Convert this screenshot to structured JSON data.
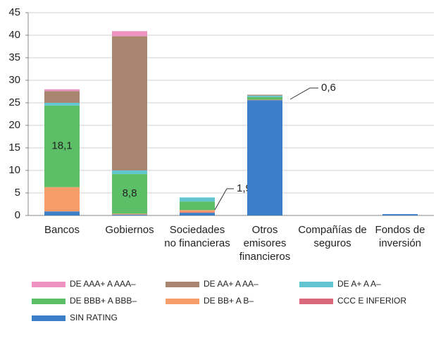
{
  "chart_data": {
    "type": "stacked-bar",
    "categories": [
      "Bancos",
      "Gobiernos",
      "Sociedades no financieras",
      "Otros emisores financieros",
      "Compañías de seguros",
      "Fondos de inversión"
    ],
    "series": [
      {
        "name": "SIN RATING",
        "color": "#3d7ec8",
        "values": [
          0.9,
          0.2,
          0.6,
          25.6,
          0,
          0.3
        ]
      },
      {
        "name": "CCC E INFERIOR",
        "color": "#d9687a",
        "values": [
          0,
          0,
          0.1,
          0,
          0,
          0
        ]
      },
      {
        "name": "DE BB+ A B–",
        "color": "#f59d6b",
        "values": [
          5.4,
          0.2,
          0.5,
          0.1,
          0,
          0
        ]
      },
      {
        "name": "DE BBB+ A BBB–",
        "color": "#5dbe68",
        "values": [
          18.1,
          8.8,
          1.9,
          0.6,
          0,
          0
        ],
        "value_labels": [
          "18,1",
          "8,8",
          "1,9",
          "0,6",
          null,
          null
        ]
      },
      {
        "name": "DE A+ A A–",
        "color": "#62c6d0",
        "values": [
          0.6,
          0.8,
          0.9,
          0.3,
          0,
          0
        ]
      },
      {
        "name": "DE AA+ A AA–",
        "color": "#a88670",
        "values": [
          2.6,
          29.8,
          0,
          0.2,
          0,
          0
        ]
      },
      {
        "name": "DE AAA+ A AAA–",
        "color": "#ee92c1",
        "values": [
          0.4,
          1.1,
          0,
          0,
          0,
          0
        ]
      }
    ],
    "ylim": [
      0,
      45
    ],
    "yticks": [
      0,
      5,
      10,
      15,
      20,
      25,
      30,
      35,
      40,
      45
    ],
    "grid": true
  }
}
